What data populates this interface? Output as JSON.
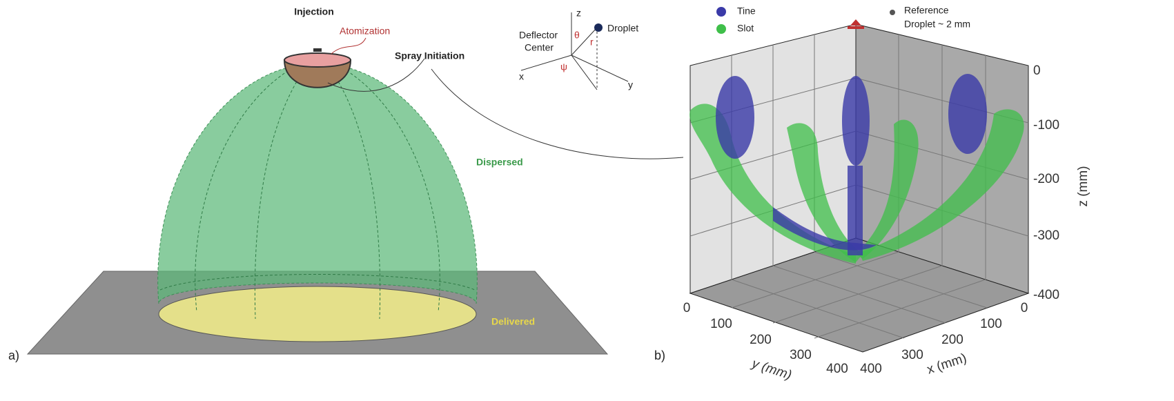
{
  "panel_a": {
    "label": "a)",
    "annotations": {
      "injection": "Injection",
      "atomization": "Atomization",
      "spray_initiation": "Spray Initiation",
      "dispersed": "Dispersed",
      "delivered": "Delivered"
    },
    "inset": {
      "axes": [
        "z",
        "x",
        "y"
      ],
      "deflector": [
        "Deflector",
        "Center"
      ],
      "droplet": "Droplet",
      "theta": "θ",
      "psi": "ψ",
      "radius": "r"
    }
  },
  "panel_b": {
    "label": "b)",
    "legend": [
      "Tine",
      "Slot"
    ],
    "reference": [
      "Reference",
      "Droplet ~ 2 mm"
    ],
    "z_axis": {
      "title": "z (mm)",
      "ticks": [
        "0",
        "-100",
        "-200",
        "-300",
        "-400"
      ]
    },
    "y_axis": {
      "title": "y (mm)",
      "ticks": [
        "0",
        "100",
        "200",
        "300",
        "400"
      ]
    },
    "x_axis": {
      "title": "x (mm)",
      "ticks": [
        "400",
        "300",
        "200",
        "100",
        "0"
      ]
    }
  }
}
